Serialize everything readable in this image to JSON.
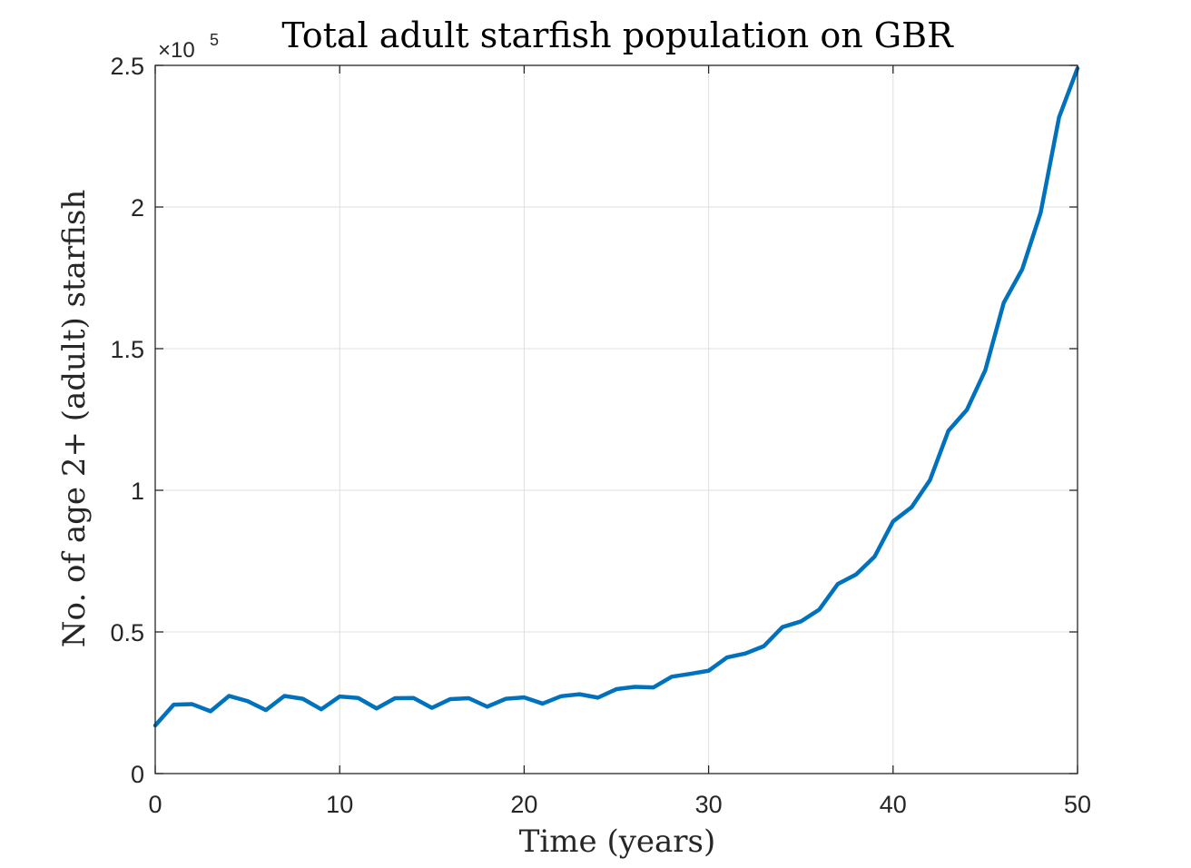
{
  "chart_data": {
    "type": "line",
    "title": "Total adult starfish population on GBR",
    "xlabel": "Time (years)",
    "ylabel": "No. of age 2+ (adult) starfish",
    "y_exponent_label": "×10",
    "y_exponent_power": "5",
    "xlim": [
      0,
      50
    ],
    "ylim": [
      0,
      2.5
    ],
    "x_ticks": [
      0,
      10,
      20,
      30,
      40,
      50
    ],
    "x_tick_labels": [
      "0",
      "10",
      "20",
      "30",
      "40",
      "50"
    ],
    "y_ticks": [
      0,
      0.5,
      1,
      1.5,
      2,
      2.5
    ],
    "y_tick_labels": [
      "0",
      "0.5",
      "1",
      "1.5",
      "2",
      "2.5"
    ],
    "grid": true,
    "series": [
      {
        "color": "#0072BD",
        "x": [
          0,
          1,
          2,
          3,
          4,
          5,
          6,
          7,
          8,
          9,
          10,
          11,
          12,
          13,
          14,
          15,
          16,
          17,
          18,
          19,
          20,
          21,
          22,
          23,
          24,
          25,
          26,
          27,
          28,
          29,
          30,
          31,
          32,
          33,
          34,
          35,
          36,
          37,
          38,
          39,
          40,
          41,
          42,
          43,
          44,
          45,
          46,
          47,
          48,
          49,
          50
        ],
        "y": [
          0.17,
          0.243,
          0.245,
          0.22,
          0.274,
          0.256,
          0.224,
          0.274,
          0.264,
          0.227,
          0.272,
          0.267,
          0.23,
          0.266,
          0.267,
          0.232,
          0.263,
          0.266,
          0.236,
          0.264,
          0.269,
          0.247,
          0.273,
          0.28,
          0.268,
          0.298,
          0.306,
          0.304,
          0.342,
          0.352,
          0.363,
          0.41,
          0.424,
          0.45,
          0.517,
          0.537,
          0.579,
          0.669,
          0.703,
          0.766,
          0.89,
          0.94,
          1.036,
          1.21,
          1.284,
          1.424,
          1.662,
          1.78,
          1.98,
          2.317,
          2.49
        ]
      }
    ]
  }
}
